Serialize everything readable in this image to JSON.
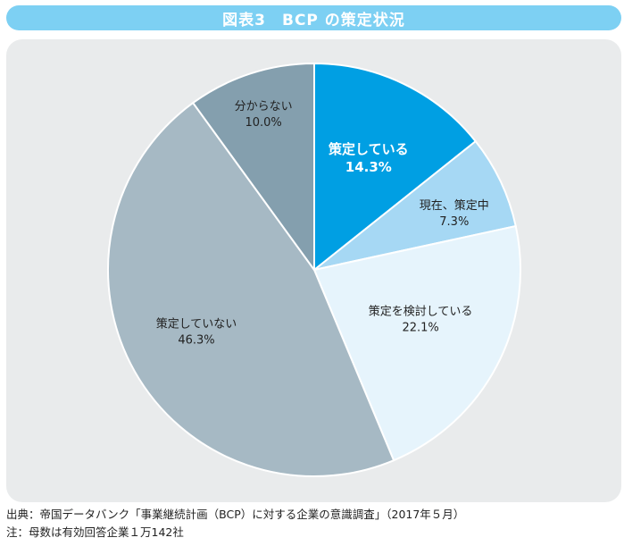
{
  "title": "図表3　BCP の策定状況",
  "chart_data": {
    "type": "pie",
    "start_angle_deg": 0,
    "direction": "clockwise",
    "slices": [
      {
        "label": "策定している",
        "value": 14.3,
        "value_label": "14.3%",
        "color": "#009fe3",
        "text_color": "#ffffff",
        "bold": true
      },
      {
        "label": "現在、策定中",
        "value": 7.3,
        "value_label": "7.3%",
        "color": "#a6d8f4",
        "text_color": "#222222",
        "bold": false
      },
      {
        "label": "策定を検討している",
        "value": 22.1,
        "value_label": "22.1%",
        "color": "#e6f4fc",
        "text_color": "#222222",
        "bold": false
      },
      {
        "label": "策定していない",
        "value": 46.3,
        "value_label": "46.3%",
        "color": "#a6b9c4",
        "text_color": "#222222",
        "bold": false
      },
      {
        "label": "分からない",
        "value": 10.0,
        "value_label": "10.0%",
        "color": "#849fae",
        "text_color": "#222222",
        "bold": false
      }
    ]
  },
  "footer": {
    "source": "出典：帝国データバンク「事業継続計画（BCP）に対する企業の意識調査」（2017年５月）",
    "note": "注：母数は有効回答企業１万142社"
  }
}
